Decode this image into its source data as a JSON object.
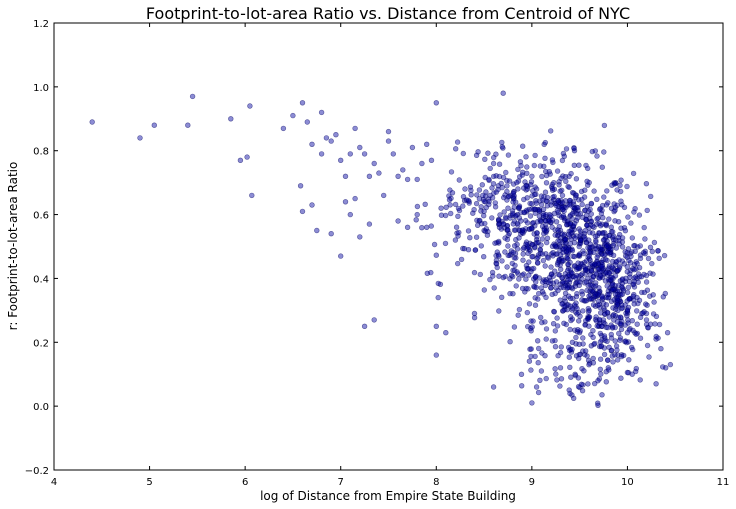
{
  "chart_data": {
    "type": "scatter",
    "title": "Footprint-to-lot-area Ratio vs. Distance from Centroid of NYC",
    "xlabel": "log of Distance from Empire State Building",
    "ylabel": "r: Footprint-to-lot-area Ratio",
    "xlim": [
      4,
      11
    ],
    "ylim": [
      -0.2,
      1.2
    ],
    "x_ticks": [
      4,
      5,
      6,
      7,
      8,
      9,
      10,
      11
    ],
    "x_tick_labels": [
      "4",
      "5",
      "6",
      "7",
      "8",
      "9",
      "10",
      "11"
    ],
    "y_ticks": [
      -0.2,
      0.0,
      0.2,
      0.4,
      0.6,
      0.8,
      1.0,
      1.2
    ],
    "y_tick_labels": [
      "−0.2",
      "0.0",
      "0.2",
      "0.4",
      "0.6",
      "0.8",
      "1.0",
      "1.2"
    ],
    "grid": false,
    "legend": "none",
    "marker_color": "#0000a0",
    "marker_alpha": 0.45,
    "series": [
      {
        "x": [
          4.4,
          4.9,
          5.05,
          5.4,
          5.45,
          5.85,
          5.95,
          6.02,
          6.05,
          6.07,
          6.4,
          6.5,
          6.58,
          6.6,
          6.6,
          6.65,
          6.7,
          6.7,
          6.75,
          6.8,
          6.8,
          6.85,
          6.9,
          6.9,
          6.95,
          7.0,
          7.0,
          7.05,
          7.05,
          7.1,
          7.1,
          7.15,
          7.15,
          7.2,
          7.2,
          7.25,
          7.25,
          7.3,
          7.3,
          7.35,
          7.35,
          7.4,
          7.45,
          7.5,
          7.5,
          7.55,
          7.6,
          7.6,
          7.65,
          7.7,
          7.7,
          7.75,
          7.8,
          7.8,
          7.85,
          7.9,
          7.9,
          7.95,
          8.0,
          8.0,
          8.0,
          8.02,
          8.05,
          8.1,
          8.2,
          8.3,
          8.4,
          8.45,
          8.6,
          8.7,
          8.75,
          8.9,
          9.0,
          9.05,
          9.1,
          9.15,
          9.2,
          9.3,
          9.4,
          9.5,
          9.55,
          9.6,
          9.7,
          9.8,
          9.9,
          10.0,
          10.05,
          10.1,
          10.2,
          10.3,
          10.4,
          10.42,
          10.45,
          9.0,
          9.1,
          9.4,
          9.6,
          9.8,
          10.0,
          9.2,
          9.35,
          9.5,
          9.65,
          9.85,
          10.1,
          10.2,
          8.9,
          9.05,
          9.3,
          9.45,
          9.55,
          9.75,
          9.9,
          10.15,
          10.3,
          10.35,
          8.5,
          8.55,
          8.6,
          8.85,
          9.0
        ],
        "y": [
          0.89,
          0.84,
          0.88,
          0.88,
          0.97,
          0.9,
          0.77,
          0.78,
          0.94,
          0.66,
          0.87,
          0.91,
          0.69,
          0.61,
          0.95,
          0.89,
          0.63,
          0.82,
          0.55,
          0.92,
          0.79,
          0.84,
          0.54,
          0.83,
          0.85,
          0.77,
          0.47,
          0.64,
          0.72,
          0.79,
          0.6,
          0.65,
          0.87,
          0.53,
          0.81,
          0.79,
          0.25,
          0.57,
          0.72,
          0.27,
          0.76,
          0.73,
          0.66,
          0.86,
          0.83,
          0.79,
          0.72,
          0.58,
          0.74,
          0.71,
          0.56,
          0.81,
          0.71,
          0.6,
          0.76,
          0.82,
          0.56,
          0.77,
          0.95,
          0.25,
          0.16,
          0.34,
          0.62,
          0.23,
          0.52,
          0.68,
          0.29,
          0.58,
          0.06,
          0.98,
          0.62,
          0.55,
          0.01,
          0.06,
          0.11,
          0.21,
          0.37,
          0.12,
          0.24,
          0.23,
          0.54,
          0.3,
          0.25,
          0.12,
          0.3,
          0.23,
          0.1,
          0.4,
          0.27,
          0.07,
          0.12,
          0.23,
          0.13,
          0.72,
          0.58,
          0.49,
          0.7,
          0.36,
          0.3,
          0.63,
          0.51,
          0.47,
          0.56,
          0.4,
          0.34,
          0.29,
          0.41,
          0.68,
          0.55,
          0.62,
          0.45,
          0.52,
          0.35,
          0.29,
          0.21,
          0.18,
          0.55,
          0.71,
          0.76,
          0.6,
          0.43
        ]
      }
    ],
    "dense_clusters": [
      {
        "x_mean": 9.35,
        "x_sd": 0.35,
        "y_mean": 0.52,
        "y_sd": 0.12,
        "n": 700
      },
      {
        "x_mean": 9.8,
        "x_sd": 0.25,
        "y_mean": 0.36,
        "y_sd": 0.1,
        "n": 400
      },
      {
        "x_mean": 8.7,
        "x_sd": 0.35,
        "y_mean": 0.62,
        "y_sd": 0.1,
        "n": 250
      },
      {
        "x_mean": 9.5,
        "x_sd": 0.35,
        "y_mean": 0.17,
        "y_sd": 0.09,
        "n": 120
      }
    ]
  }
}
